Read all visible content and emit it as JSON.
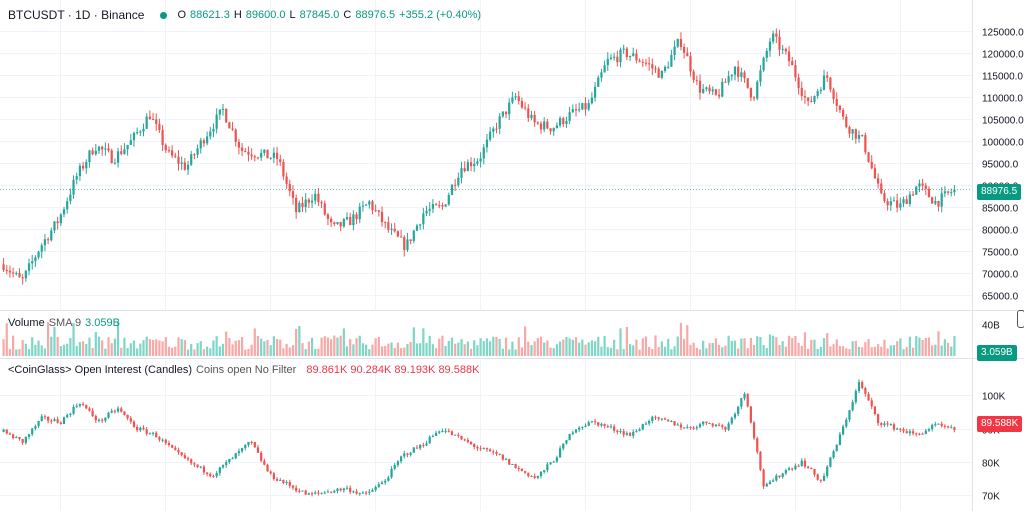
{
  "header": {
    "symbol": "BTCUSDT · 1D · Binance",
    "o_label": "O",
    "o_value": "88621.3",
    "h_label": "H",
    "h_value": "89600.0",
    "l_label": "L",
    "l_value": "87845.0",
    "c_label": "C",
    "c_value": "88976.5",
    "change": "+355.2 (+0.40%)"
  },
  "volume_header": {
    "title": "Volume",
    "sma_label": "SMA 9",
    "sma_value": "3.059B"
  },
  "oi_header": {
    "title": "<CoinGlass> Open Interest (Candles)",
    "subtitle": "Coins open No Filter",
    "values": "89.861K  90.284K  89.193K  89.588K"
  },
  "tags": {
    "price": "88976.5",
    "volume": "3.059B",
    "oi": "89.588K"
  },
  "colors": {
    "up": "#26a69a",
    "down": "#ef5350",
    "text_up": "#089981",
    "text_down": "#f23645"
  },
  "chart_data": [
    {
      "type": "candlestick",
      "title": "BTCUSDT · 1D · Binance",
      "y_ticks": [
        125000,
        120000,
        115000,
        110000,
        105000,
        100000,
        95000,
        90000,
        85000,
        80000,
        75000,
        70000,
        65000
      ],
      "y_tick_labels": [
        "125000.0",
        "120000.0",
        "115000.0",
        "110000.0",
        "105000.0",
        "100000.0",
        "95000.0",
        "90000.0",
        "85000.0",
        "80000.0",
        "75000.0",
        "70000.0",
        "65000.0"
      ],
      "ylim": [
        63000,
        127000
      ],
      "last": 88976.5,
      "close_path": [
        72000,
        68000,
        76000,
        82000,
        92000,
        99000,
        96000,
        100000,
        106000,
        97000,
        94000,
        101000,
        107000,
        98000,
        97000,
        96000,
        84000,
        88000,
        80000,
        82000,
        86000,
        80000,
        76000,
        84000,
        85000,
        94000,
        96000,
        104000,
        110000,
        104000,
        103000,
        106000,
        108000,
        118000,
        120000,
        118000,
        115000,
        123000,
        112000,
        110000,
        117000,
        110000,
        124000,
        118000,
        108000,
        115000,
        104000,
        100000,
        87000,
        85000,
        90000,
        86000,
        88976.5
      ]
    },
    {
      "type": "bar",
      "title": "Volume",
      "y_ticks": [
        40000000000
      ],
      "y_tick_labels": [
        "40B"
      ],
      "ylim": [
        0,
        48000000000
      ],
      "sma9_last": 3059000000
    },
    {
      "type": "candlestick",
      "title": "<CoinGlass> Open Interest (Candles)",
      "y_ticks": [
        100000,
        90000,
        80000,
        70000
      ],
      "y_tick_labels": [
        "100K",
        "90K",
        "80K",
        "70K"
      ],
      "ylim": [
        67000,
        107000
      ],
      "last_ohlc": [
        89861,
        90284,
        89193,
        89588
      ],
      "close_path": [
        89000,
        86000,
        93000,
        92000,
        98000,
        92000,
        96000,
        90000,
        88000,
        83000,
        79000,
        76000,
        81000,
        86000,
        76000,
        73000,
        70000,
        71000,
        72000,
        70000,
        74000,
        82000,
        85000,
        90000,
        87000,
        84000,
        82000,
        78000,
        75000,
        81000,
        90000,
        92000,
        90000,
        88000,
        93000,
        92000,
        90000,
        92000,
        90000,
        101000,
        72000,
        77000,
        80000,
        74000,
        88000,
        104000,
        92000,
        90000,
        88000,
        91000,
        89588
      ]
    }
  ]
}
